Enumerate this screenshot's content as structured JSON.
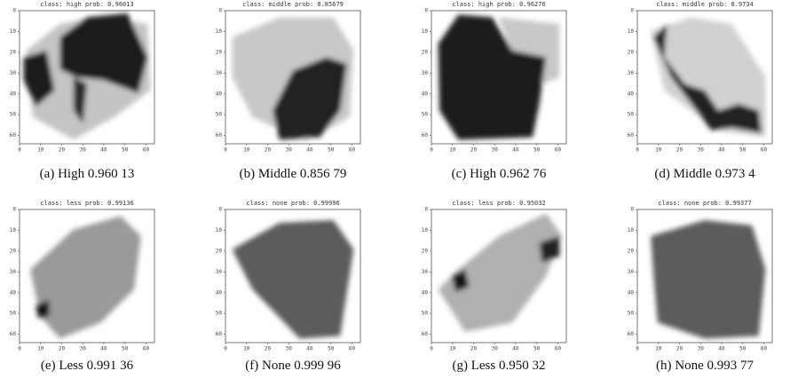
{
  "panels": [
    {
      "title": "class: high   prob: 0.96013",
      "caption": "(a) High 0.960 13",
      "xticks": [
        0,
        10,
        20,
        30,
        40,
        50,
        60
      ],
      "yticks": [
        0,
        10,
        20,
        30,
        40,
        50,
        60
      ]
    },
    {
      "title": "class: middle   prob: 0.85679",
      "caption": "(b) Middle 0.856 79",
      "xticks": [
        0,
        10,
        20,
        30,
        40,
        50,
        60
      ],
      "yticks": [
        0,
        10,
        20,
        30,
        40,
        50,
        60
      ]
    },
    {
      "title": "class: high   prob: 0.96276",
      "caption": "(c) High 0.962 76",
      "xticks": [
        0,
        10,
        20,
        30,
        40,
        50,
        60
      ],
      "yticks": [
        0,
        10,
        20,
        30,
        40,
        50,
        60
      ]
    },
    {
      "title": "class: middle   prob: 0.9734",
      "caption": "(d) Middle 0.973 4",
      "xticks": [
        0,
        10,
        20,
        30,
        40,
        50,
        60
      ],
      "yticks": [
        0,
        10,
        20,
        30,
        40,
        50,
        60
      ]
    },
    {
      "title": "class: less   prob: 0.99136",
      "caption": "(e) Less 0.991 36",
      "xticks": [
        0,
        10,
        20,
        30,
        40,
        50,
        60
      ],
      "yticks": [
        0,
        10,
        20,
        30,
        40,
        50,
        60
      ]
    },
    {
      "title": "class: none   prob: 0.99996",
      "caption": "(f) None 0.999 96",
      "xticks": [
        0,
        10,
        20,
        30,
        40,
        50,
        60
      ],
      "yticks": [
        0,
        10,
        20,
        30,
        40,
        50,
        60
      ]
    },
    {
      "title": "class: less   prob: 0.95032",
      "caption": "(g) Less 0.950 32",
      "xticks": [
        0,
        10,
        20,
        30,
        40,
        50,
        60
      ],
      "yticks": [
        0,
        10,
        20,
        30,
        40,
        50,
        60
      ]
    },
    {
      "title": "class: none   prob: 0.99377",
      "caption": "(h) None 0.993 77",
      "xticks": [
        0,
        10,
        20,
        30,
        40,
        50,
        60
      ],
      "yticks": [
        0,
        10,
        20,
        30,
        40,
        50,
        60
      ]
    }
  ]
}
